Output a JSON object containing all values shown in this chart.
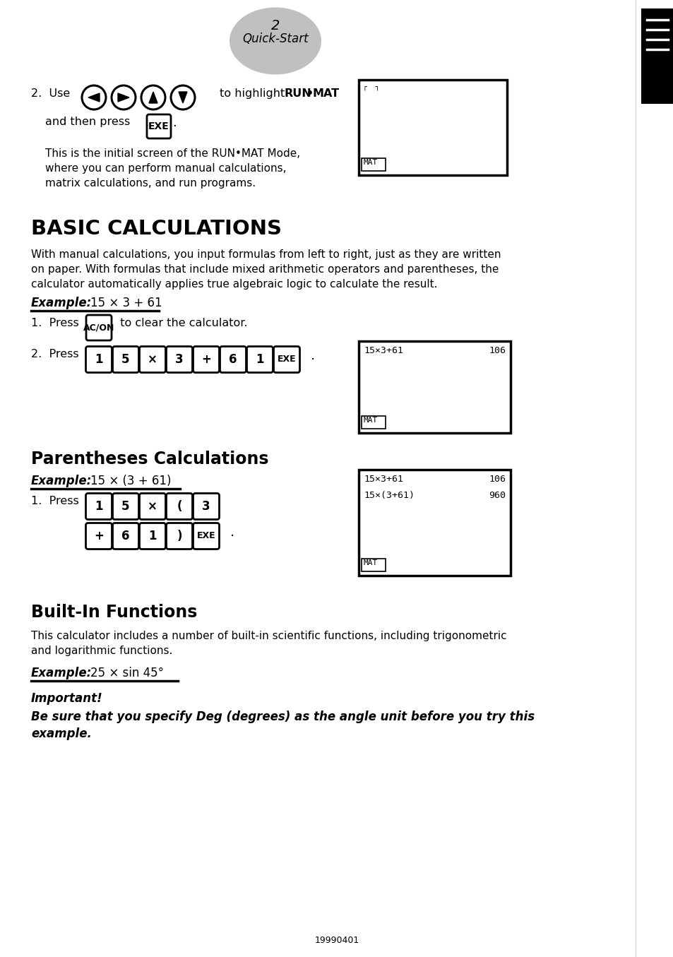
{
  "bg_color": "#ffffff",
  "page_width": 9.54,
  "page_height": 13.55,
  "dpi": 100,
  "header_number": "2",
  "header_italic": "Quick-Start",
  "section1_title": "BASIC CALCULATIONS",
  "section2_title": "Parentheses Calculations",
  "section3_title": "Built-In Functions",
  "footer_text": "19990401",
  "desc_lines": [
    "This is the initial screen of the RUN•MAT Mode,",
    "where you can perform manual calculations,",
    "matrix calculations, and run programs."
  ],
  "basic_body": [
    "With manual calculations, you input formulas from left to right, just as they are written",
    "on paper. With formulas that include mixed arithmetic operators and parentheses, the",
    "calculator automatically applies true algebraic logic to calculate the result."
  ],
  "ex1_formula": "15 × 3 + 61",
  "ex1_keys": [
    "1",
    "5",
    "×",
    "3",
    "+",
    "6",
    "1",
    "EXE"
  ],
  "screen1_line1": "15×3+61",
  "screen1_val1": "106",
  "par_formula": "15 × (3 + 61)",
  "par_keys_row1": [
    "1",
    "5",
    "×",
    "(",
    "3"
  ],
  "par_keys_row2": [
    "+",
    "6",
    "1",
    ")",
    "EXE"
  ],
  "screen2_line1": "15×3+61",
  "screen2_val1": "106",
  "screen2_line2": "15×(3+61)",
  "screen2_val2": "960",
  "bif_body": [
    "This calculator includes a number of built-in scientific functions, including trigonometric",
    "and logarithmic functions."
  ],
  "ex3_formula": "25 × sin 45°",
  "warning_lines": [
    "Be sure that you specify Deg (degrees) as the angle unit before you try this",
    "example."
  ]
}
